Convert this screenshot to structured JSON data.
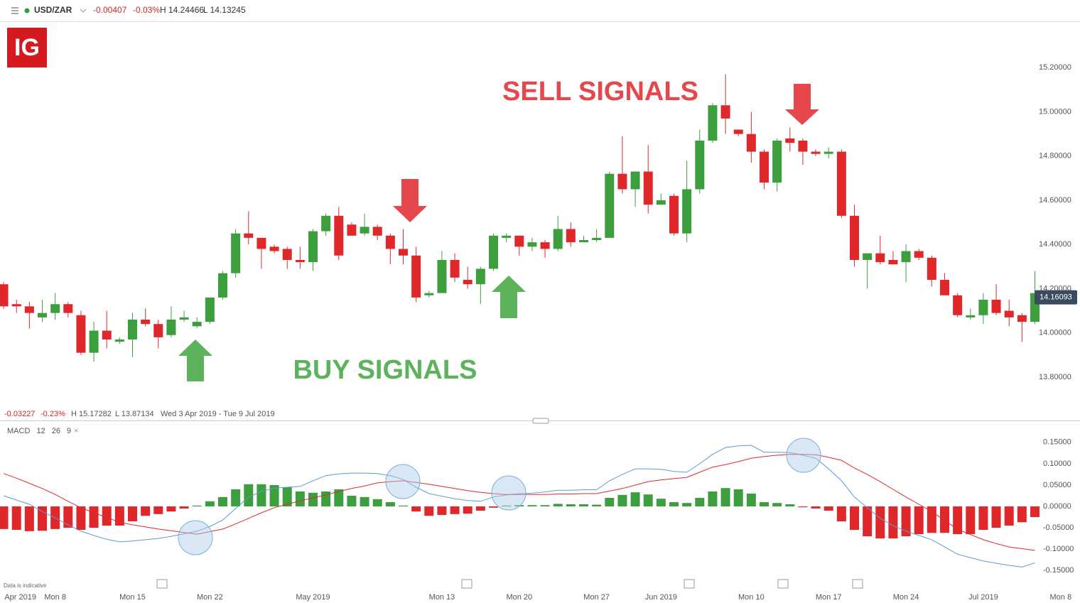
{
  "toolbar": {
    "symbol": "USD/ZAR",
    "change": "-0.00407",
    "change_percent": "-0.03%",
    "high": "H 14.24466",
    "low": "L 14.13245"
  },
  "logo": "IG",
  "range_info": {
    "change": "-0.03227",
    "change_percent": "-0.23%",
    "high": "H 15.17282",
    "low": "L 13.87134",
    "period": "Wed 3 Apr 2019 - Tue 9 Jul 2019"
  },
  "footnote": "Data is indicative",
  "chart_data": [
    {
      "type": "candlestick",
      "up_color": "#3d9e3d",
      "down_color": "#e0282b",
      "open": [
        14.22,
        14.13,
        14.12,
        14.07,
        14.09,
        14.13,
        14.08,
        13.91,
        14.01,
        13.96,
        13.97,
        14.06,
        14.04,
        13.99,
        14.06,
        14.03,
        14.05,
        14.16,
        14.27,
        14.45,
        14.43,
        14.39,
        14.38,
        14.33,
        14.32,
        14.46,
        14.53,
        14.49,
        14.45,
        14.48,
        14.44,
        14.38,
        14.35,
        14.17,
        14.18,
        14.33,
        14.24,
        14.22,
        14.29,
        14.43,
        14.44,
        14.39,
        14.41,
        14.38,
        14.47,
        14.41,
        14.42,
        14.43,
        14.72,
        14.65,
        14.73,
        14.58,
        14.62,
        14.45,
        14.65,
        14.87,
        15.03,
        14.92,
        14.9,
        14.82,
        14.68,
        14.88,
        14.87,
        14.82,
        14.81,
        14.82,
        14.53,
        14.33,
        14.36,
        14.33,
        14.32,
        14.37,
        14.34,
        14.24,
        14.17,
        14.07,
        14.08,
        14.15,
        14.1,
        14.08,
        14.05
      ],
      "high": [
        14.23,
        14.15,
        14.14,
        14.15,
        14.18,
        14.14,
        14.1,
        14.05,
        14.1,
        13.98,
        14.09,
        14.11,
        14.06,
        14.12,
        14.1,
        14.07,
        14.16,
        14.28,
        14.47,
        14.55,
        14.43,
        14.4,
        14.39,
        14.39,
        14.47,
        14.54,
        14.57,
        14.5,
        14.54,
        14.49,
        14.45,
        14.47,
        14.39,
        14.19,
        14.37,
        14.36,
        14.3,
        14.3,
        14.45,
        14.45,
        14.44,
        14.43,
        14.42,
        14.53,
        14.5,
        14.44,
        14.47,
        14.73,
        14.89,
        14.73,
        14.85,
        14.63,
        14.63,
        14.78,
        14.92,
        15.04,
        15.17,
        14.92,
        15.0,
        14.83,
        14.88,
        14.93,
        14.88,
        14.83,
        14.84,
        14.83,
        14.58,
        14.36,
        14.44,
        14.37,
        14.4,
        14.38,
        14.35,
        14.27,
        14.18,
        14.11,
        14.18,
        14.22,
        14.15,
        14.09,
        14.28
      ],
      "low": [
        14.11,
        14.09,
        14.02,
        14.05,
        14.06,
        14.07,
        13.9,
        13.87,
        13.93,
        13.95,
        13.89,
        14.03,
        13.93,
        13.98,
        14.05,
        14.02,
        14.04,
        14.15,
        14.25,
        14.4,
        14.29,
        14.36,
        14.29,
        14.29,
        14.28,
        14.44,
        14.33,
        14.44,
        14.44,
        14.42,
        14.31,
        14.31,
        14.14,
        14.16,
        14.18,
        14.23,
        14.2,
        14.13,
        14.28,
        14.41,
        14.35,
        14.37,
        14.34,
        14.37,
        14.39,
        14.41,
        14.41,
        14.43,
        14.63,
        14.57,
        14.54,
        14.58,
        14.44,
        14.41,
        14.63,
        14.86,
        14.9,
        14.89,
        14.77,
        14.65,
        14.64,
        14.82,
        14.76,
        14.8,
        14.79,
        14.52,
        14.3,
        14.2,
        14.31,
        14.31,
        14.23,
        14.33,
        14.21,
        14.17,
        14.07,
        14.06,
        14.04,
        14.08,
        14.03,
        13.96,
        14.04
      ],
      "close": [
        14.12,
        14.12,
        14.09,
        14.09,
        14.13,
        14.09,
        13.91,
        14.01,
        13.97,
        13.97,
        14.06,
        14.04,
        13.98,
        14.06,
        14.07,
        14.05,
        14.16,
        14.27,
        14.45,
        14.43,
        14.38,
        14.37,
        14.33,
        14.32,
        14.46,
        14.53,
        14.35,
        14.44,
        14.48,
        14.44,
        14.38,
        14.35,
        14.16,
        14.18,
        14.33,
        14.25,
        14.22,
        14.29,
        14.44,
        14.44,
        14.39,
        14.41,
        14.38,
        14.47,
        14.41,
        14.42,
        14.43,
        14.72,
        14.65,
        14.73,
        14.58,
        14.6,
        14.45,
        14.65,
        14.87,
        15.03,
        14.97,
        14.9,
        14.82,
        14.68,
        14.87,
        14.86,
        14.82,
        14.81,
        14.82,
        14.53,
        14.33,
        14.36,
        14.32,
        14.31,
        14.37,
        14.34,
        14.24,
        14.17,
        14.08,
        14.08,
        14.15,
        14.09,
        14.07,
        14.05,
        14.18
      ],
      "xlim": [
        -0.28,
        83.5
      ],
      "ylim": [
        13.61,
        15.41
      ],
      "yticks": [
        {
          "value": 15.2,
          "label": "15.20000"
        },
        {
          "value": 15.0,
          "label": "15.00000"
        },
        {
          "value": 14.8,
          "label": "14.80000"
        },
        {
          "value": 14.6,
          "label": "14.60000"
        },
        {
          "value": 14.4,
          "label": "14.40000"
        },
        {
          "value": 14.2,
          "label": "14.20000"
        },
        {
          "value": 14.0,
          "label": "14.00000"
        },
        {
          "value": 13.8,
          "label": "13.80000"
        }
      ],
      "grid": false,
      "last_price": 14.16093,
      "annotations": [
        {
          "text": "SELL SIGNALS",
          "color": "#e5474c"
        },
        {
          "text": "BUY SIGNALS",
          "color": "#5cb35c"
        }
      ]
    },
    {
      "type": "macd",
      "title": "MACD 12 26 9",
      "histogram": [
        -0.053,
        -0.055,
        -0.058,
        -0.057,
        -0.053,
        -0.05,
        -0.055,
        -0.05,
        -0.045,
        -0.045,
        -0.035,
        -0.022,
        -0.018,
        -0.012,
        -0.005,
        0.002,
        0.012,
        0.022,
        0.04,
        0.052,
        0.052,
        0.05,
        0.045,
        0.035,
        0.032,
        0.035,
        0.04,
        0.025,
        0.022,
        0.017,
        0.01,
        0.002,
        -0.012,
        -0.022,
        -0.02,
        -0.018,
        -0.017,
        -0.01,
        -0.003,
        0.002,
        0.003,
        0.003,
        0.003,
        0.006,
        0.005,
        0.005,
        0.004,
        0.02,
        0.027,
        0.033,
        0.028,
        0.018,
        0.01,
        0.008,
        0.02,
        0.035,
        0.043,
        0.04,
        0.03,
        0.01,
        0.008,
        0.005,
        -0.002,
        -0.005,
        -0.01,
        -0.035,
        -0.055,
        -0.07,
        -0.075,
        -0.075,
        -0.07,
        -0.065,
        -0.062,
        -0.062,
        -0.065,
        -0.065,
        -0.055,
        -0.05,
        -0.045,
        -0.037,
        -0.025
      ],
      "positive_color": "#3d9e3d",
      "negative_color": "#e0282b",
      "series": [
        {
          "color": "#5b9bd5",
          "values": [
            0.025,
            0.015,
            0.005,
            -0.012,
            -0.027,
            -0.043,
            -0.058,
            -0.068,
            -0.077,
            -0.083,
            -0.081,
            -0.078,
            -0.075,
            -0.07,
            -0.064,
            -0.058,
            -0.047,
            -0.032,
            -0.005,
            0.022,
            0.035,
            0.043,
            0.045,
            0.047,
            0.06,
            0.072,
            0.076,
            0.078,
            0.078,
            0.077,
            0.072,
            0.063,
            0.045,
            0.03,
            0.024,
            0.018,
            0.014,
            0.012,
            0.022,
            0.027,
            0.03,
            0.031,
            0.034,
            0.038,
            0.038,
            0.039,
            0.039,
            0.06,
            0.075,
            0.088,
            0.088,
            0.087,
            0.082,
            0.08,
            0.1,
            0.122,
            0.138,
            0.142,
            0.143,
            0.127,
            0.127,
            0.126,
            0.12,
            0.113,
            0.088,
            0.06,
            0.022,
            -0.003,
            -0.028,
            -0.045,
            -0.058,
            -0.068,
            -0.078,
            -0.095,
            -0.112,
            -0.12,
            -0.128,
            -0.133,
            -0.138,
            -0.142,
            -0.132
          ]
        },
        {
          "color": "#e0282b",
          "values": [
            0.077,
            0.066,
            0.054,
            0.042,
            0.028,
            0.012,
            -0.003,
            -0.015,
            -0.026,
            -0.037,
            -0.043,
            -0.048,
            -0.053,
            -0.057,
            -0.061,
            -0.065,
            -0.059,
            -0.053,
            -0.041,
            -0.028,
            -0.015,
            -0.003,
            0.005,
            0.013,
            0.02,
            0.027,
            0.035,
            0.042,
            0.048,
            0.055,
            0.058,
            0.06,
            0.056,
            0.052,
            0.047,
            0.042,
            0.037,
            0.033,
            0.03,
            0.028,
            0.028,
            0.028,
            0.028,
            0.029,
            0.029,
            0.03,
            0.03,
            0.036,
            0.042,
            0.05,
            0.058,
            0.062,
            0.065,
            0.068,
            0.08,
            0.092,
            0.098,
            0.105,
            0.113,
            0.117,
            0.12,
            0.122,
            0.122,
            0.121,
            0.115,
            0.108,
            0.09,
            0.075,
            0.058,
            0.04,
            0.022,
            0.005,
            -0.012,
            -0.033,
            -0.053,
            -0.066,
            -0.078,
            -0.087,
            -0.095,
            -0.099,
            -0.103
          ]
        }
      ],
      "xlim": [
        -0.28,
        83.5
      ],
      "ylim": [
        -0.178,
        0.188
      ],
      "yticks": [
        {
          "value": 0.15,
          "label": "0.15000"
        },
        {
          "value": 0.1,
          "label": "0.10000"
        },
        {
          "value": 0.05,
          "label": "0.05000"
        },
        {
          "value": 0.0,
          "label": "0.00000"
        },
        {
          "value": -0.05,
          "label": "-0.05000"
        },
        {
          "value": -0.1,
          "label": "-0.10000"
        },
        {
          "value": -0.15,
          "label": "-0.15000"
        }
      ],
      "xticks": [
        {
          "value": 1.3,
          "label": "Apr 2019"
        },
        {
          "value": 4,
          "label": "Mon 8"
        },
        {
          "value": 10,
          "label": "Mon 15"
        },
        {
          "value": 16,
          "label": "Mon 22"
        },
        {
          "value": 24,
          "label": "May 2019"
        },
        {
          "value": 34,
          "label": "Mon 13"
        },
        {
          "value": 40,
          "label": "Mon 20"
        },
        {
          "value": 46,
          "label": "Mon 27"
        },
        {
          "value": 51,
          "label": "Jun 2019"
        },
        {
          "value": 58,
          "label": "Mon 10"
        },
        {
          "value": 64,
          "label": "Mon 17"
        },
        {
          "value": 70,
          "label": "Mon 24"
        },
        {
          "value": 76,
          "label": "Jul 2019"
        },
        {
          "value": 82,
          "label": "Mon 8"
        }
      ],
      "grid": false
    }
  ]
}
